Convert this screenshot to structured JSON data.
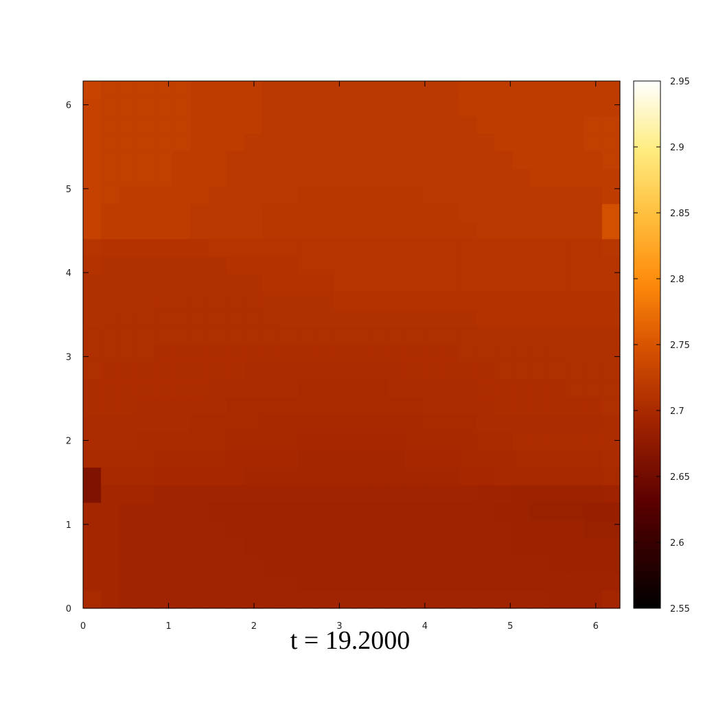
{
  "chart_data": {
    "type": "heatmap",
    "title": "t = 19.2000",
    "xlabel": "",
    "ylabel": "",
    "xlim": [
      0,
      6.2832
    ],
    "ylim": [
      0,
      6.2832
    ],
    "x_ticks": [
      "0",
      "1",
      "2",
      "3",
      "4",
      "5",
      "6"
    ],
    "y_ticks": [
      "0",
      "1",
      "2",
      "3",
      "4",
      "5",
      "6"
    ],
    "colorbar": {
      "range": [
        2.55,
        2.95
      ],
      "ticks": [
        "2.55",
        "2.6",
        "2.65",
        "2.7",
        "2.75",
        "2.8",
        "2.85",
        "2.9",
        "2.95"
      ],
      "palette": "black-red-orange-yellow-white"
    },
    "grid": {
      "nx": 30,
      "ny": 30,
      "row_order": "top-to-bottom (y from 2π down to 0)"
    },
    "rows": [
      [
        2.73,
        2.725,
        2.725,
        2.725,
        2.725,
        2.725,
        2.722,
        2.722,
        2.722,
        2.722,
        2.718,
        2.718,
        2.718,
        2.718,
        2.718,
        2.718,
        2.718,
        2.718,
        2.718,
        2.718,
        2.718,
        2.722,
        2.722,
        2.722,
        2.722,
        2.722,
        2.722,
        2.722,
        2.722,
        2.722
      ],
      [
        2.728,
        2.725,
        2.725,
        2.725,
        2.725,
        2.725,
        2.722,
        2.722,
        2.722,
        2.722,
        2.718,
        2.718,
        2.718,
        2.718,
        2.718,
        2.718,
        2.718,
        2.718,
        2.718,
        2.718,
        2.718,
        2.722,
        2.722,
        2.722,
        2.722,
        2.722,
        2.722,
        2.722,
        2.722,
        2.722
      ],
      [
        2.728,
        2.725,
        2.725,
        2.725,
        2.725,
        2.725,
        2.722,
        2.722,
        2.722,
        2.722,
        2.718,
        2.718,
        2.718,
        2.718,
        2.718,
        2.718,
        2.718,
        2.718,
        2.718,
        2.718,
        2.718,
        2.718,
        2.722,
        2.722,
        2.722,
        2.722,
        2.722,
        2.722,
        2.725,
        2.725
      ],
      [
        2.728,
        2.725,
        2.725,
        2.725,
        2.725,
        2.725,
        2.722,
        2.722,
        2.722,
        2.718,
        2.718,
        2.718,
        2.718,
        2.718,
        2.718,
        2.718,
        2.718,
        2.718,
        2.718,
        2.718,
        2.718,
        2.718,
        2.718,
        2.722,
        2.722,
        2.722,
        2.722,
        2.722,
        2.725,
        2.725
      ],
      [
        2.728,
        2.725,
        2.725,
        2.725,
        2.725,
        2.722,
        2.722,
        2.722,
        2.718,
        2.718,
        2.718,
        2.718,
        2.718,
        2.718,
        2.718,
        2.718,
        2.718,
        2.718,
        2.718,
        2.718,
        2.718,
        2.718,
        2.718,
        2.718,
        2.722,
        2.722,
        2.722,
        2.722,
        2.722,
        2.725
      ],
      [
        2.728,
        2.725,
        2.725,
        2.725,
        2.725,
        2.722,
        2.722,
        2.722,
        2.718,
        2.718,
        2.718,
        2.718,
        2.718,
        2.718,
        2.718,
        2.718,
        2.718,
        2.718,
        2.718,
        2.718,
        2.718,
        2.718,
        2.718,
        2.718,
        2.718,
        2.722,
        2.722,
        2.722,
        2.722,
        2.722
      ],
      [
        2.728,
        2.725,
        2.722,
        2.722,
        2.722,
        2.722,
        2.722,
        2.718,
        2.718,
        2.718,
        2.718,
        2.718,
        2.715,
        2.715,
        2.715,
        2.715,
        2.715,
        2.715,
        2.715,
        2.718,
        2.718,
        2.718,
        2.718,
        2.718,
        2.718,
        2.718,
        2.718,
        2.718,
        2.718,
        2.722
      ],
      [
        2.728,
        2.722,
        2.722,
        2.722,
        2.722,
        2.722,
        2.718,
        2.718,
        2.718,
        2.718,
        2.715,
        2.715,
        2.715,
        2.715,
        2.715,
        2.715,
        2.715,
        2.715,
        2.715,
        2.715,
        2.715,
        2.718,
        2.718,
        2.718,
        2.718,
        2.718,
        2.718,
        2.718,
        2.718,
        2.745
      ],
      [
        2.728,
        2.722,
        2.722,
        2.722,
        2.722,
        2.722,
        2.718,
        2.718,
        2.718,
        2.718,
        2.715,
        2.715,
        2.715,
        2.715,
        2.715,
        2.715,
        2.715,
        2.715,
        2.715,
        2.715,
        2.715,
        2.715,
        2.718,
        2.718,
        2.718,
        2.718,
        2.718,
        2.718,
        2.718,
        2.745
      ],
      [
        2.712,
        2.71,
        2.71,
        2.71,
        2.71,
        2.71,
        2.71,
        2.712,
        2.712,
        2.712,
        2.712,
        2.712,
        2.712,
        2.712,
        2.712,
        2.712,
        2.712,
        2.712,
        2.712,
        2.712,
        2.712,
        2.712,
        2.712,
        2.712,
        2.712,
        2.712,
        2.712,
        2.712,
        2.712,
        2.715
      ],
      [
        2.71,
        2.708,
        2.708,
        2.708,
        2.708,
        2.708,
        2.708,
        2.708,
        2.71,
        2.71,
        2.71,
        2.71,
        2.712,
        2.712,
        2.712,
        2.712,
        2.712,
        2.712,
        2.712,
        2.712,
        2.712,
        2.712,
        2.712,
        2.712,
        2.712,
        2.712,
        2.712,
        2.712,
        2.712,
        2.712
      ],
      [
        2.708,
        2.708,
        2.708,
        2.708,
        2.708,
        2.708,
        2.708,
        2.708,
        2.708,
        2.708,
        2.71,
        2.71,
        2.71,
        2.71,
        2.712,
        2.712,
        2.712,
        2.712,
        2.712,
        2.712,
        2.712,
        2.712,
        2.712,
        2.712,
        2.712,
        2.712,
        2.712,
        2.712,
        2.712,
        2.712
      ],
      [
        2.708,
        2.708,
        2.708,
        2.708,
        2.706,
        2.706,
        2.706,
        2.706,
        2.706,
        2.706,
        2.708,
        2.708,
        2.708,
        2.708,
        2.71,
        2.71,
        2.71,
        2.71,
        2.71,
        2.71,
        2.71,
        2.71,
        2.71,
        2.71,
        2.71,
        2.71,
        2.71,
        2.71,
        2.71,
        2.71
      ],
      [
        2.708,
        2.706,
        2.706,
        2.706,
        2.706,
        2.706,
        2.706,
        2.706,
        2.706,
        2.706,
        2.706,
        2.708,
        2.708,
        2.708,
        2.708,
        2.708,
        2.708,
        2.708,
        2.708,
        2.708,
        2.708,
        2.708,
        2.71,
        2.71,
        2.71,
        2.71,
        2.71,
        2.71,
        2.71,
        2.71
      ],
      [
        2.706,
        2.706,
        2.706,
        2.706,
        2.706,
        2.706,
        2.706,
        2.706,
        2.706,
        2.706,
        2.706,
        2.706,
        2.706,
        2.706,
        2.706,
        2.706,
        2.706,
        2.706,
        2.706,
        2.706,
        2.706,
        2.706,
        2.708,
        2.708,
        2.708,
        2.708,
        2.708,
        2.708,
        2.708,
        2.708
      ],
      [
        2.706,
        2.706,
        2.706,
        2.706,
        2.704,
        2.704,
        2.704,
        2.704,
        2.704,
        2.704,
        2.704,
        2.704,
        2.704,
        2.704,
        2.704,
        2.704,
        2.704,
        2.704,
        2.704,
        2.704,
        2.704,
        2.706,
        2.706,
        2.706,
        2.706,
        2.706,
        2.706,
        2.708,
        2.708,
        2.708
      ],
      [
        2.706,
        2.704,
        2.704,
        2.704,
        2.704,
        2.704,
        2.704,
        2.704,
        2.704,
        2.702,
        2.702,
        2.702,
        2.702,
        2.702,
        2.702,
        2.702,
        2.702,
        2.702,
        2.704,
        2.704,
        2.704,
        2.704,
        2.704,
        2.706,
        2.706,
        2.706,
        2.706,
        2.706,
        2.706,
        2.706
      ],
      [
        2.704,
        2.704,
        2.704,
        2.704,
        2.704,
        2.704,
        2.704,
        2.702,
        2.702,
        2.702,
        2.702,
        2.702,
        2.7,
        2.7,
        2.7,
        2.7,
        2.7,
        2.702,
        2.702,
        2.702,
        2.702,
        2.702,
        2.704,
        2.704,
        2.704,
        2.704,
        2.704,
        2.706,
        2.706,
        2.706
      ],
      [
        2.704,
        2.704,
        2.704,
        2.702,
        2.702,
        2.702,
        2.702,
        2.702,
        2.7,
        2.7,
        2.7,
        2.7,
        2.7,
        2.7,
        2.7,
        2.7,
        2.7,
        2.7,
        2.7,
        2.702,
        2.702,
        2.702,
        2.702,
        2.704,
        2.704,
        2.704,
        2.704,
        2.704,
        2.704,
        2.706
      ],
      [
        2.702,
        2.702,
        2.702,
        2.702,
        2.702,
        2.702,
        2.7,
        2.7,
        2.7,
        2.7,
        2.698,
        2.698,
        2.698,
        2.698,
        2.698,
        2.698,
        2.698,
        2.698,
        2.698,
        2.7,
        2.7,
        2.7,
        2.702,
        2.702,
        2.702,
        2.702,
        2.702,
        2.702,
        2.702,
        2.704
      ],
      [
        2.702,
        2.702,
        2.702,
        2.7,
        2.7,
        2.7,
        2.7,
        2.7,
        2.698,
        2.698,
        2.698,
        2.698,
        2.696,
        2.696,
        2.696,
        2.696,
        2.696,
        2.696,
        2.698,
        2.698,
        2.698,
        2.698,
        2.7,
        2.7,
        2.704,
        2.704,
        2.704,
        2.704,
        2.704,
        2.704
      ],
      [
        2.7,
        2.7,
        2.7,
        2.7,
        2.698,
        2.698,
        2.698,
        2.698,
        2.696,
        2.696,
        2.696,
        2.696,
        2.694,
        2.694,
        2.694,
        2.694,
        2.694,
        2.694,
        2.696,
        2.696,
        2.696,
        2.698,
        2.698,
        2.698,
        2.7,
        2.7,
        2.7,
        2.7,
        2.7,
        2.702
      ],
      [
        2.662,
        2.698,
        2.698,
        2.698,
        2.696,
        2.696,
        2.696,
        2.696,
        2.696,
        2.694,
        2.694,
        2.694,
        2.694,
        2.694,
        2.694,
        2.694,
        2.694,
        2.694,
        2.694,
        2.694,
        2.694,
        2.696,
        2.696,
        2.698,
        2.698,
        2.698,
        2.698,
        2.698,
        2.698,
        2.7
      ],
      [
        2.662,
        2.694,
        2.694,
        2.694,
        2.692,
        2.692,
        2.692,
        2.692,
        2.692,
        2.692,
        2.692,
        2.692,
        2.692,
        2.692,
        2.692,
        2.692,
        2.692,
        2.692,
        2.692,
        2.692,
        2.692,
        2.692,
        2.69,
        2.69,
        2.688,
        2.688,
        2.688,
        2.688,
        2.688,
        2.69
      ],
      [
        2.694,
        2.694,
        2.692,
        2.692,
        2.692,
        2.692,
        2.692,
        2.69,
        2.69,
        2.69,
        2.69,
        2.69,
        2.69,
        2.69,
        2.69,
        2.69,
        2.69,
        2.69,
        2.69,
        2.69,
        2.69,
        2.69,
        2.69,
        2.688,
        2.688,
        2.686,
        2.686,
        2.686,
        2.684,
        2.684
      ],
      [
        2.694,
        2.694,
        2.692,
        2.692,
        2.692,
        2.692,
        2.692,
        2.692,
        2.69,
        2.69,
        2.69,
        2.69,
        2.69,
        2.69,
        2.69,
        2.69,
        2.69,
        2.69,
        2.69,
        2.69,
        2.69,
        2.69,
        2.69,
        2.69,
        2.688,
        2.688,
        2.688,
        2.688,
        2.686,
        2.686
      ],
      [
        2.694,
        2.694,
        2.692,
        2.692,
        2.692,
        2.692,
        2.692,
        2.692,
        2.692,
        2.69,
        2.69,
        2.69,
        2.69,
        2.69,
        2.69,
        2.69,
        2.69,
        2.69,
        2.69,
        2.69,
        2.69,
        2.69,
        2.69,
        2.69,
        2.688,
        2.688,
        2.688,
        2.688,
        2.688,
        2.688
      ],
      [
        2.694,
        2.694,
        2.692,
        2.692,
        2.692,
        2.692,
        2.692,
        2.692,
        2.692,
        2.692,
        2.69,
        2.69,
        2.69,
        2.69,
        2.69,
        2.69,
        2.69,
        2.69,
        2.69,
        2.69,
        2.69,
        2.69,
        2.69,
        2.69,
        2.69,
        2.69,
        2.688,
        2.688,
        2.688,
        2.688
      ],
      [
        2.694,
        2.694,
        2.692,
        2.692,
        2.692,
        2.692,
        2.692,
        2.692,
        2.692,
        2.692,
        2.692,
        2.692,
        2.69,
        2.69,
        2.69,
        2.69,
        2.69,
        2.69,
        2.69,
        2.69,
        2.69,
        2.69,
        2.69,
        2.69,
        2.69,
        2.69,
        2.69,
        2.69,
        2.69,
        2.69
      ],
      [
        2.7,
        2.694,
        2.692,
        2.692,
        2.692,
        2.692,
        2.692,
        2.692,
        2.692,
        2.692,
        2.692,
        2.692,
        2.692,
        2.692,
        2.692,
        2.692,
        2.692,
        2.692,
        2.692,
        2.692,
        2.692,
        2.692,
        2.692,
        2.692,
        2.692,
        2.692,
        2.69,
        2.69,
        2.69,
        2.694
      ]
    ]
  }
}
